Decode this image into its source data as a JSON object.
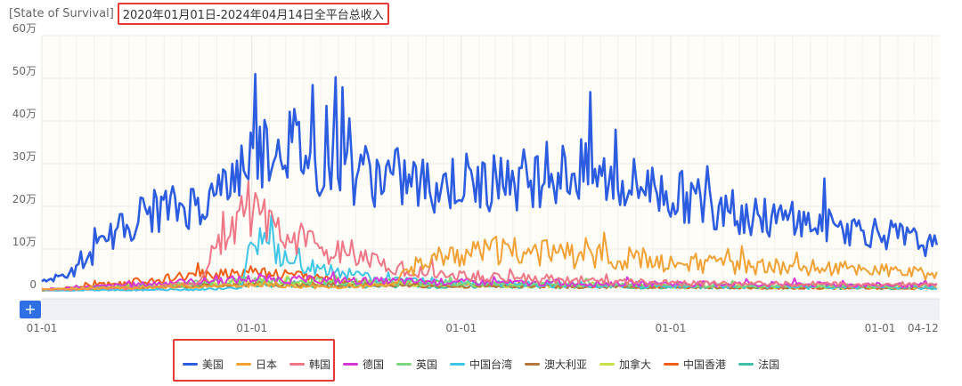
{
  "header": {
    "app_label": "[State of Survival]",
    "range_label": "2020年01月01日-2024年04月14日全平台总收入"
  },
  "chart_data": {
    "type": "line",
    "y_ticks": [
      "0",
      "10万",
      "20万",
      "30万",
      "40万",
      "50万",
      "60万"
    ],
    "ylim": [
      0,
      600000
    ],
    "x_ticks": [
      "01-01",
      "01-01",
      "01-01",
      "01-01",
      "01-01",
      "04-12"
    ],
    "x_tick_dates": [
      "2020-01-01",
      "2021-01-01",
      "2022-01-01",
      "2023-01-01",
      "2024-01-01",
      "2024-04-12"
    ],
    "x_range": [
      "2020-01-01",
      "2024-04-14"
    ],
    "grid": true,
    "legend_position": "bottom",
    "series": [
      {
        "name": "美国",
        "color": "#2c5ce0",
        "x": [
          "2020-01-01",
          "2020-03-01",
          "2020-05-01",
          "2020-07-01",
          "2020-09-01",
          "2020-11-01",
          "2021-01-01",
          "2021-03-01",
          "2021-05-01",
          "2021-07-01",
          "2021-09-01",
          "2021-11-01",
          "2022-01-01",
          "2022-03-01",
          "2022-05-01",
          "2022-07-01",
          "2022-09-01",
          "2022-11-01",
          "2023-01-01",
          "2023-03-01",
          "2023-05-01",
          "2023-07-01",
          "2023-09-01",
          "2023-11-01",
          "2024-01-01",
          "2024-03-01",
          "2024-04-12"
        ],
        "values": [
          20000,
          50000,
          130000,
          190000,
          200000,
          220000,
          330000,
          360000,
          300000,
          280000,
          270000,
          250000,
          260000,
          250000,
          270000,
          280000,
          270000,
          250000,
          230000,
          210000,
          180000,
          170000,
          160000,
          150000,
          140000,
          120000,
          100000
        ]
      },
      {
        "name": "日本",
        "color": "#f2a135",
        "x": [
          "2020-01-01",
          "2020-06-01",
          "2021-01-01",
          "2021-06-01",
          "2021-09-01",
          "2021-11-01",
          "2022-01-01",
          "2022-04-01",
          "2022-07-01",
          "2022-10-01",
          "2023-01-01",
          "2023-06-01",
          "2023-12-01",
          "2024-04-12"
        ],
        "values": [
          5000,
          10000,
          15000,
          10000,
          15000,
          80000,
          90000,
          100000,
          85000,
          75000,
          65000,
          60000,
          55000,
          40000
        ]
      },
      {
        "name": "韩国",
        "color": "#f07585",
        "x": [
          "2020-01-01",
          "2020-06-01",
          "2020-10-01",
          "2020-11-15",
          "2021-01-01",
          "2021-03-01",
          "2021-06-01",
          "2021-09-01",
          "2021-12-01",
          "2022-06-01",
          "2023-01-01",
          "2024-04-12"
        ],
        "values": [
          5000,
          8000,
          20000,
          150000,
          200000,
          140000,
          90000,
          60000,
          40000,
          30000,
          20000,
          15000
        ]
      },
      {
        "name": "德国",
        "color": "#d536d5",
        "x": [
          "2020-01-01",
          "2020-08-01",
          "2021-01-01",
          "2021-08-01",
          "2022-06-01",
          "2023-06-01",
          "2024-04-12"
        ],
        "values": [
          5000,
          20000,
          30000,
          25000,
          20000,
          18000,
          15000
        ]
      },
      {
        "name": "英国",
        "color": "#7cd67c",
        "x": [
          "2020-01-01",
          "2020-08-01",
          "2021-01-01",
          "2021-08-01",
          "2022-06-01",
          "2023-06-01",
          "2024-04-12"
        ],
        "values": [
          4000,
          15000,
          28000,
          22000,
          18000,
          15000,
          12000
        ]
      },
      {
        "name": "中国台湾",
        "color": "#3fc5e6",
        "x": [
          "2020-01-01",
          "2020-10-01",
          "2020-12-15",
          "2021-01-01",
          "2021-03-01",
          "2021-08-01",
          "2022-06-01",
          "2023-06-01",
          "2024-04-12"
        ],
        "values": [
          3000,
          5000,
          10000,
          140000,
          70000,
          30000,
          15000,
          12000,
          10000
        ]
      },
      {
        "name": "澳大利亚",
        "color": "#b5773a",
        "x": [
          "2020-01-01",
          "2020-08-01",
          "2021-01-01",
          "2021-08-01",
          "2022-06-01",
          "2023-06-01",
          "2024-04-12"
        ],
        "values": [
          3000,
          12000,
          18000,
          15000,
          12000,
          10000,
          9000
        ]
      },
      {
        "name": "加拿大",
        "color": "#c8e04a",
        "x": [
          "2020-01-01",
          "2020-08-01",
          "2021-01-01",
          "2021-08-01",
          "2022-06-01",
          "2023-06-01",
          "2024-04-12"
        ],
        "values": [
          4000,
          15000,
          22000,
          18000,
          14000,
          12000,
          10000
        ]
      },
      {
        "name": "中国香港",
        "color": "#f25d14",
        "x": [
          "2020-01-01",
          "2020-08-01",
          "2021-01-01",
          "2021-03-01",
          "2021-08-01",
          "2022-06-01",
          "2023-06-01",
          "2024-04-12"
        ],
        "values": [
          3000,
          30000,
          50000,
          40000,
          20000,
          15000,
          10000,
          8000
        ]
      },
      {
        "name": "法国",
        "color": "#3fbfa5",
        "x": [
          "2020-01-01",
          "2020-08-01",
          "2021-01-01",
          "2021-08-01",
          "2022-06-01",
          "2023-06-01",
          "2024-04-12"
        ],
        "values": [
          3000,
          12000,
          16000,
          14000,
          12000,
          10000,
          8000
        ]
      }
    ]
  },
  "slider": {
    "plus_label": "+"
  }
}
